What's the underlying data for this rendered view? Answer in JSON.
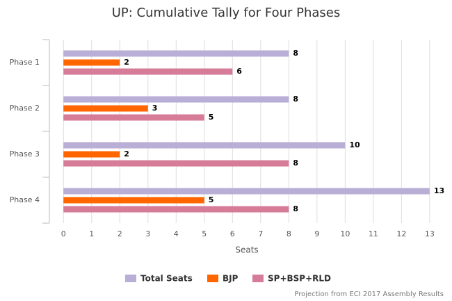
{
  "chart_data": {
    "type": "hbar",
    "title": "UP: Cumulative Tally for Four Phases",
    "categories": [
      "Phase 1",
      "Phase 2",
      "Phase 3",
      "Phase 4"
    ],
    "series": [
      {
        "name": "Total Seats",
        "color": "#b9aed6",
        "values": [
          8,
          8,
          10,
          13
        ]
      },
      {
        "name": "BJP",
        "color": "#ff6600",
        "values": [
          2,
          3,
          2,
          5
        ]
      },
      {
        "name": "SP+BSP+RLD",
        "color": "#d67b98",
        "values": [
          6,
          5,
          8,
          8
        ]
      }
    ],
    "x_label": "Seats",
    "xlim": [
      -0.5,
      13.25
    ],
    "xticks": [
      0,
      1,
      2,
      3,
      4,
      5,
      6,
      7,
      8,
      9,
      10,
      11,
      12,
      13
    ],
    "grid": true,
    "legend": "bottom",
    "credit": "Projection from ECI 2017 Assembly Results"
  }
}
